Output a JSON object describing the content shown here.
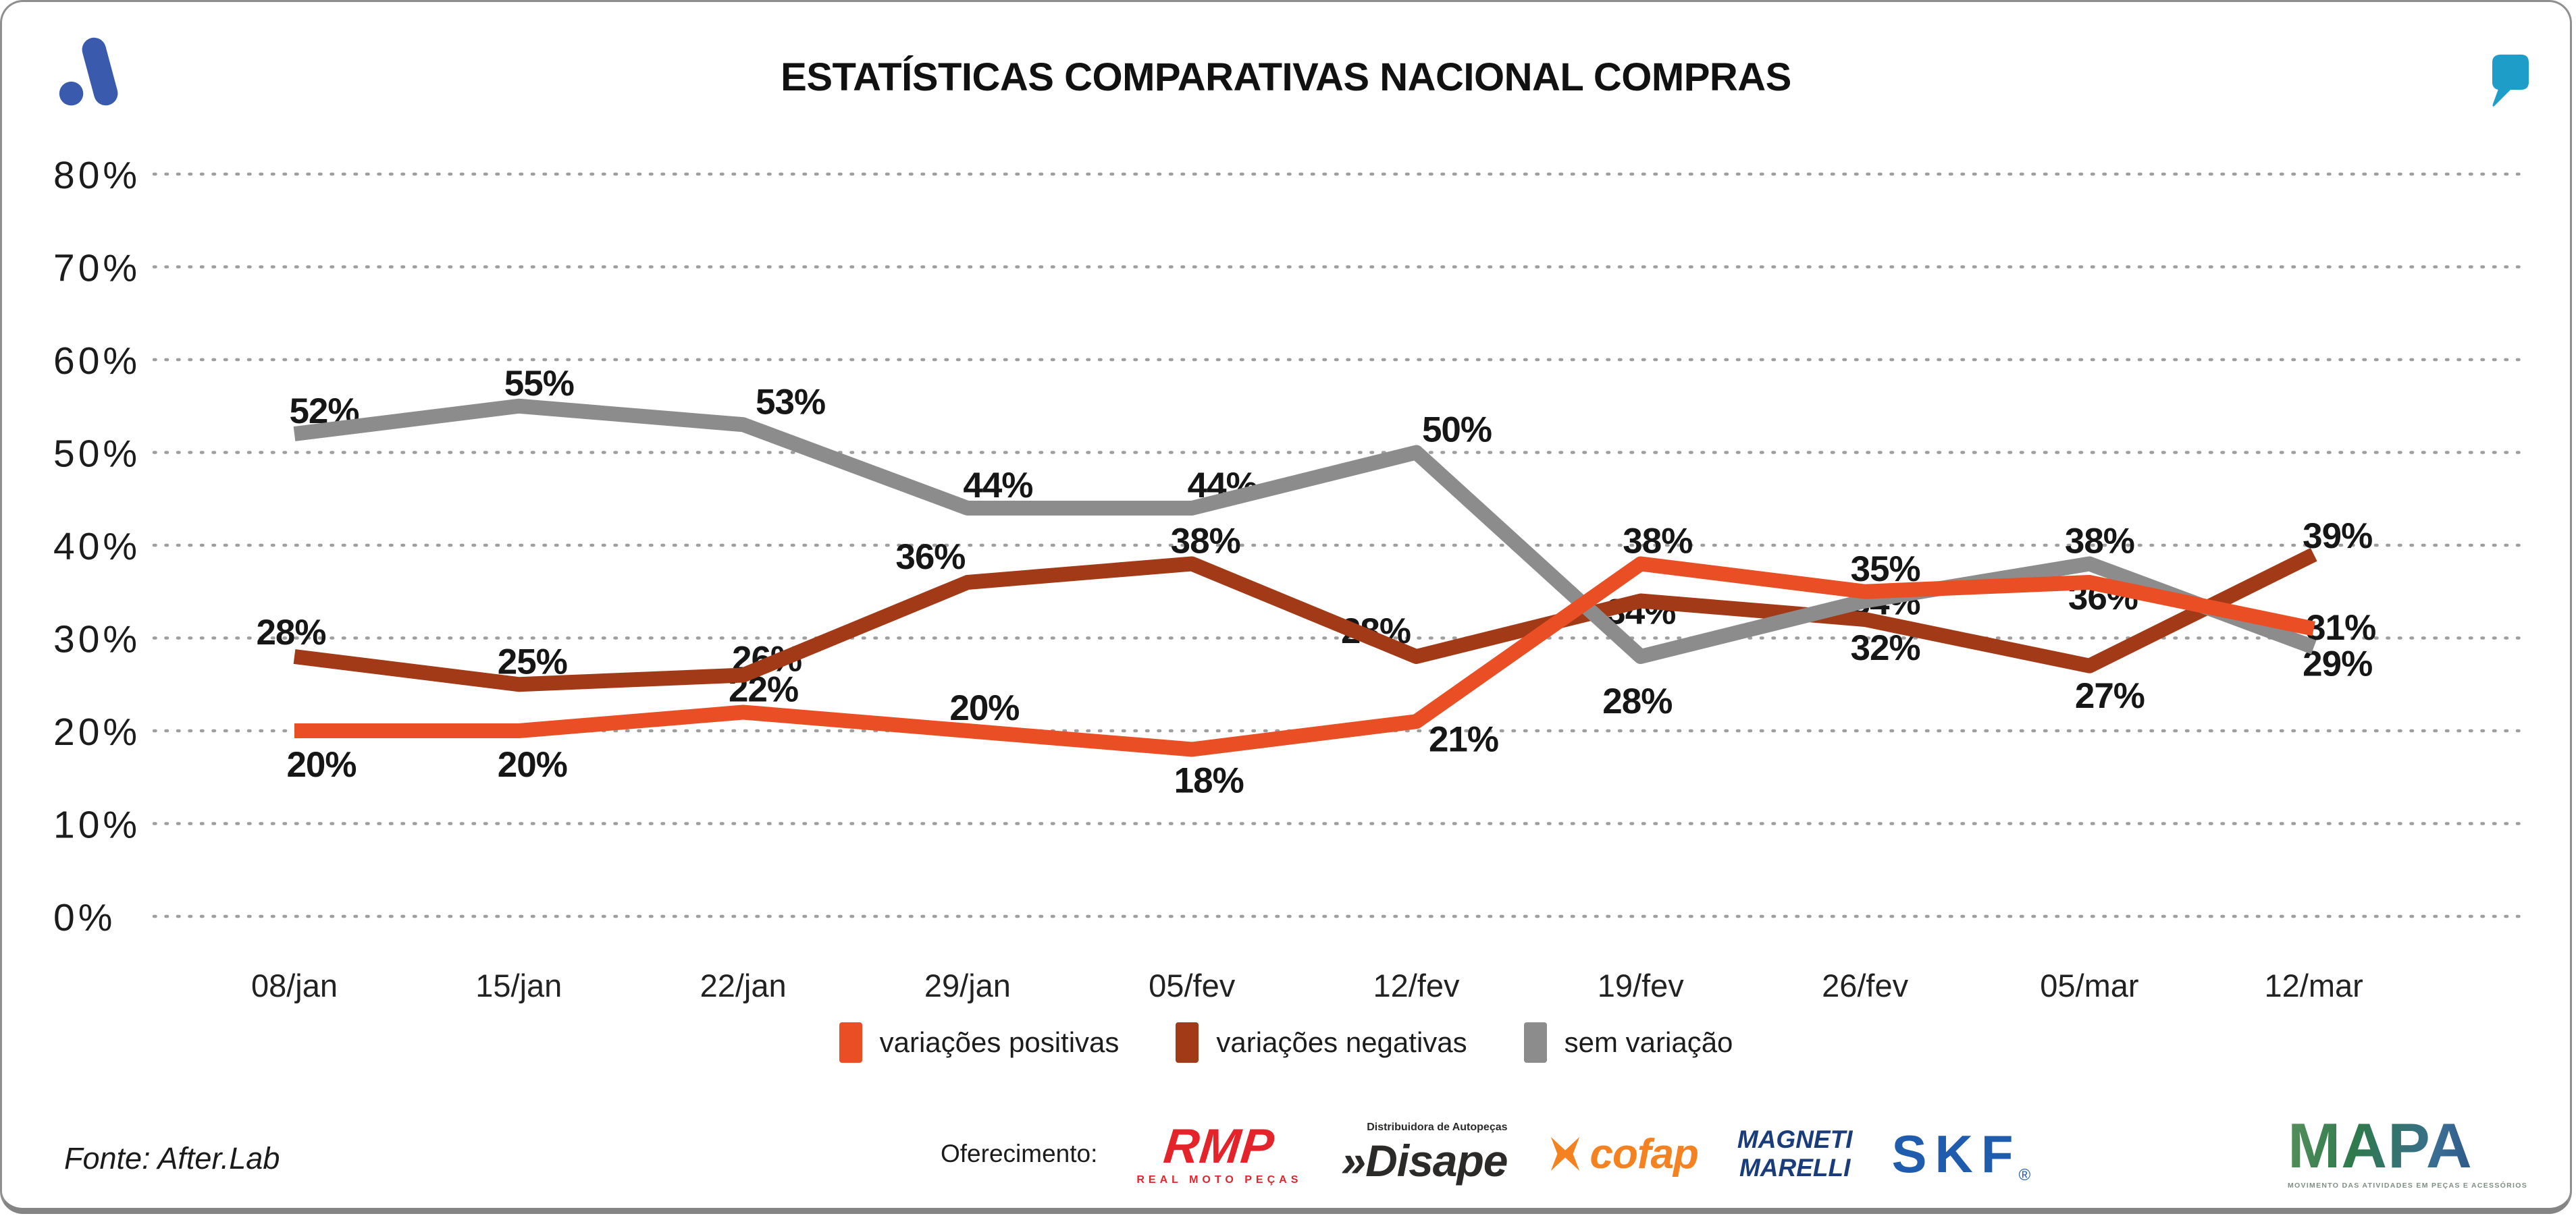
{
  "header": {
    "title": "ESTATÍSTICAS COMPARATIVAS NACIONAL COMPRAS"
  },
  "chart_data": {
    "type": "line",
    "title": "ESTATÍSTICAS COMPARATIVAS NACIONAL COMPRAS",
    "categories": [
      "08/jan",
      "15/jan",
      "22/jan",
      "29/jan",
      "05/fev",
      "12/fev",
      "19/fev",
      "26/fev",
      "05/mar",
      "12/mar"
    ],
    "series": [
      {
        "name": "variações positivas",
        "color": "#E94E24",
        "values": [
          20,
          20,
          22,
          20,
          18,
          21,
          38,
          35,
          36,
          31
        ]
      },
      {
        "name": "variações negativas",
        "color": "#A33A17",
        "values": [
          28,
          25,
          26,
          36,
          38,
          28,
          34,
          32,
          27,
          39
        ]
      },
      {
        "name": "sem variação",
        "color": "#8C8C8C",
        "values": [
          52,
          55,
          53,
          44,
          44,
          50,
          28,
          34,
          38,
          29
        ]
      }
    ],
    "ylim": [
      0,
      80
    ],
    "yticks": [
      "80%",
      "70%",
      "60%",
      "50%",
      "40%",
      "30%",
      "20%",
      "10%",
      "0%"
    ],
    "xlabel": "",
    "ylabel": "",
    "grid": "horizontal-dotted",
    "legend_position": "bottom",
    "data_labels": "percent"
  },
  "footer": {
    "source": "Fonte: After.Lab",
    "offering_label": "Oferecimento:",
    "sponsors": [
      {
        "name": "RMP",
        "subtitle": "REAL MOTO PEÇAS",
        "color": "#E3242B"
      },
      {
        "name": "Disape",
        "prefix": "»",
        "tagline": "Distribuidora de Autopeças",
        "color": "#2B2A29"
      },
      {
        "name": "cofap",
        "color": "#F58220"
      },
      {
        "name": "MAGNETI",
        "name2": "MARELLI",
        "color": "#1B3C7A"
      },
      {
        "name": "SKF",
        "mark": "®",
        "color": "#1F5CAD"
      }
    ],
    "brand": {
      "name": "MAPA",
      "subtitle": "MOVIMENTO DAS ATIVIDADES EM PEÇAS E ACESSÓRIOS"
    }
  },
  "icons": {
    "top_left": "afterlab-a-icon",
    "top_right": "quote-icon",
    "cofap": "cofap-x-icon"
  }
}
